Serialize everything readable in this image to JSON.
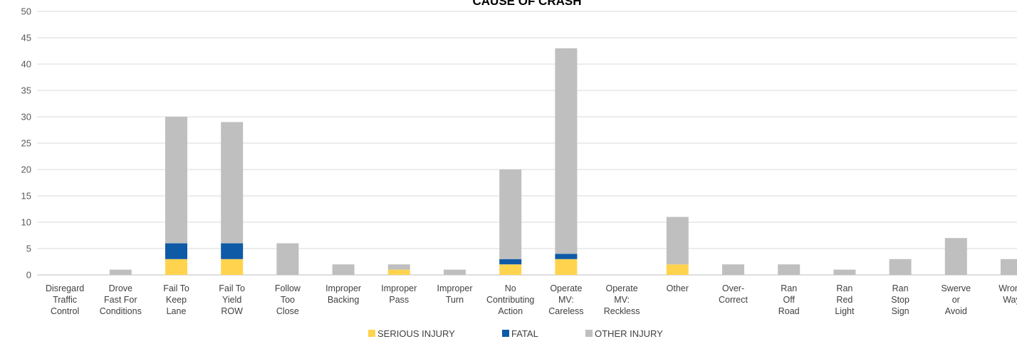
{
  "chart_data": {
    "type": "bar",
    "stacked": true,
    "title": "CAUSE OF CRASH",
    "xlabel": "",
    "ylabel": "",
    "ylim": [
      0,
      50
    ],
    "yticks": [
      0,
      5,
      10,
      15,
      20,
      25,
      30,
      35,
      40,
      45,
      50
    ],
    "grid": true,
    "legend_position": "bottom",
    "categories": [
      [
        "Disregard",
        "Traffic",
        "Control"
      ],
      [
        "Drove",
        "Fast For",
        "Conditions"
      ],
      [
        "Fail To",
        "Keep",
        "Lane"
      ],
      [
        "Fail To",
        "Yield",
        "ROW"
      ],
      [
        "Follow",
        "Too",
        "Close"
      ],
      [
        "Improper",
        "Backing"
      ],
      [
        "Improper",
        "Pass"
      ],
      [
        "Improper",
        "Turn"
      ],
      [
        "No",
        "Contributing",
        "Action"
      ],
      [
        "Operate",
        "MV:",
        "Careless"
      ],
      [
        "Operate",
        "MV:",
        "Reckless"
      ],
      [
        "Other"
      ],
      [
        "Over-",
        "Correct"
      ],
      [
        "Ran",
        "Off",
        "Road"
      ],
      [
        "Ran",
        "Red",
        "Light"
      ],
      [
        "Ran",
        "Stop",
        "Sign"
      ],
      [
        "Swerve",
        "or",
        "Avoid"
      ],
      [
        "Wrong",
        "Way"
      ]
    ],
    "series": [
      {
        "name": "SERIOUS INJURY",
        "color": "#FFD34E",
        "values": [
          0,
          0,
          3,
          3,
          0,
          0,
          1,
          0,
          2,
          3,
          0,
          2,
          0,
          0,
          0,
          0,
          0,
          0
        ]
      },
      {
        "name": "FATAL",
        "color": "#0E5AA7",
        "values": [
          0,
          0,
          3,
          3,
          0,
          0,
          0,
          0,
          1,
          1,
          0,
          0,
          0,
          0,
          0,
          0,
          0,
          0
        ]
      },
      {
        "name": "OTHER INJURY",
        "color": "#BFBFBF",
        "values": [
          0,
          1,
          24,
          23,
          6,
          2,
          1,
          1,
          17,
          39,
          0,
          9,
          2,
          2,
          1,
          3,
          7,
          3
        ]
      }
    ]
  }
}
